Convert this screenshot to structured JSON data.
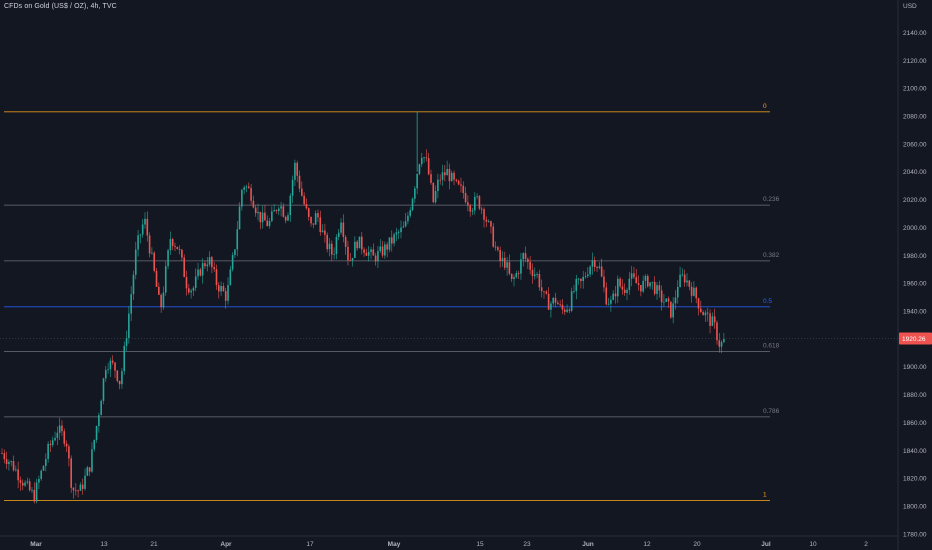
{
  "header": {
    "symbol_title": "CFDs on Gold (US$ / OZ), 4h, TVC",
    "currency": "USD"
  },
  "colors": {
    "background": "#131722",
    "up": "#26a69a",
    "down": "#ef5350",
    "fib_0": "#f7a21b",
    "fib_1": "#f7a21b",
    "fib_mid": "#787b86",
    "fib_05": "#2962ff",
    "axis_text": "#b2b5be",
    "price_badge": "#ef5350"
  },
  "chart_data": {
    "type": "candlestick",
    "y_axis": {
      "ticks": [
        1780,
        1800,
        1820,
        1840,
        1860,
        1880,
        1900,
        1920,
        1940,
        1960,
        1980,
        2000,
        2020,
        2040,
        2060,
        2080,
        2100,
        2120,
        2140
      ],
      "tick_labels": [
        "1780.00",
        "1800.00",
        "1820.00",
        "1840.00",
        "1860.00",
        "1880.00",
        "1900.00",
        "1920.00",
        "1940.00",
        "1960.00",
        "1980.00",
        "2000.00",
        "2020.00",
        "2040.00",
        "2060.00",
        "2080.00",
        "2100.00",
        "2120.00",
        "2140.00"
      ],
      "range": [
        1780,
        2150
      ]
    },
    "x_axis": {
      "ticks": [
        {
          "label": "Mar",
          "bold": true
        },
        {
          "label": "13",
          "bold": false
        },
        {
          "label": "21",
          "bold": false
        },
        {
          "label": "Apr",
          "bold": true
        },
        {
          "label": "17",
          "bold": false
        },
        {
          "label": "May",
          "bold": true
        },
        {
          "label": "15",
          "bold": false
        },
        {
          "label": "23",
          "bold": false
        },
        {
          "label": "Jun",
          "bold": true
        },
        {
          "label": "12",
          "bold": false
        },
        {
          "label": "20",
          "bold": false
        },
        {
          "label": "Jul",
          "bold": true
        },
        {
          "label": "10",
          "bold": false
        },
        {
          "label": "2",
          "bold": false
        }
      ]
    },
    "current_price": 1920.26,
    "current_price_label": "1920.26",
    "fibonacci": [
      {
        "level": "0",
        "price": 2083
      },
      {
        "level": "0.236",
        "price": 2016
      },
      {
        "level": "0.382",
        "price": 1976
      },
      {
        "level": "0.5",
        "price": 1943
      },
      {
        "level": "0.618",
        "price": 1911
      },
      {
        "level": "0.786",
        "price": 1864
      },
      {
        "level": "1",
        "price": 1804
      }
    ],
    "price_path": [
      [
        1838,
        0
      ],
      [
        1830,
        10
      ],
      [
        1814,
        24
      ],
      [
        1807,
        32
      ],
      [
        1826,
        40
      ],
      [
        1840,
        46
      ],
      [
        1855,
        55
      ],
      [
        1848,
        64
      ],
      [
        1812,
        70
      ],
      [
        1811,
        78
      ],
      [
        1830,
        88
      ],
      [
        1865,
        96
      ],
      [
        1904,
        104
      ],
      [
        1900,
        112
      ],
      [
        1888,
        118
      ],
      [
        1935,
        126
      ],
      [
        1985,
        134
      ],
      [
        2006,
        142
      ],
      [
        1975,
        150
      ],
      [
        1940,
        158
      ],
      [
        1993,
        168
      ],
      [
        1985,
        176
      ],
      [
        1960,
        184
      ],
      [
        1955,
        190
      ],
      [
        1970,
        198
      ],
      [
        1978,
        206
      ],
      [
        1960,
        214
      ],
      [
        1950,
        224
      ],
      [
        1985,
        232
      ],
      [
        2032,
        240
      ],
      [
        2025,
        248
      ],
      [
        2008,
        256
      ],
      [
        2002,
        266
      ],
      [
        2018,
        276
      ],
      [
        2007,
        284
      ],
      [
        2045,
        292
      ],
      [
        2020,
        300
      ],
      [
        2000,
        308
      ],
      [
        2010,
        314
      ],
      [
        1990,
        322
      ],
      [
        1980,
        330
      ],
      [
        2008,
        338
      ],
      [
        1975,
        346
      ],
      [
        1990,
        354
      ],
      [
        1985,
        362
      ],
      [
        1978,
        370
      ],
      [
        1982,
        378
      ],
      [
        1988,
        386
      ],
      [
        1995,
        394
      ],
      [
        2000,
        402
      ],
      [
        2025,
        410
      ],
      [
        2055,
        418
      ],
      [
        2045,
        424
      ],
      [
        2018,
        430
      ],
      [
        2035,
        436
      ],
      [
        2040,
        444
      ],
      [
        2030,
        452
      ],
      [
        2025,
        460
      ],
      [
        2015,
        468
      ],
      [
        2020,
        474
      ],
      [
        2012,
        480
      ],
      [
        1995,
        488
      ],
      [
        1976,
        496
      ],
      [
        1975,
        502
      ],
      [
        1960,
        508
      ],
      [
        1968,
        514
      ],
      [
        1980,
        520
      ],
      [
        1970,
        528
      ],
      [
        1965,
        534
      ],
      [
        1950,
        540
      ],
      [
        1945,
        546
      ],
      [
        1948,
        552
      ],
      [
        1940,
        558
      ],
      [
        1945,
        566
      ],
      [
        1958,
        572
      ],
      [
        1960,
        578
      ],
      [
        1970,
        584
      ],
      [
        1978,
        590
      ],
      [
        1970,
        596
      ],
      [
        1950,
        602
      ],
      [
        1945,
        608
      ],
      [
        1960,
        614
      ],
      [
        1955,
        620
      ],
      [
        1964,
        626
      ],
      [
        1960,
        632
      ],
      [
        1958,
        638
      ],
      [
        1962,
        644
      ],
      [
        1958,
        650
      ],
      [
        1950,
        656
      ],
      [
        1946,
        662
      ],
      [
        1938,
        668
      ],
      [
        1960,
        674
      ],
      [
        1965,
        680
      ],
      [
        1958,
        686
      ],
      [
        1950,
        692
      ],
      [
        1940,
        698
      ],
      [
        1935,
        704
      ],
      [
        1930,
        710
      ],
      [
        1915,
        716
      ],
      [
        1920,
        722
      ]
    ]
  }
}
